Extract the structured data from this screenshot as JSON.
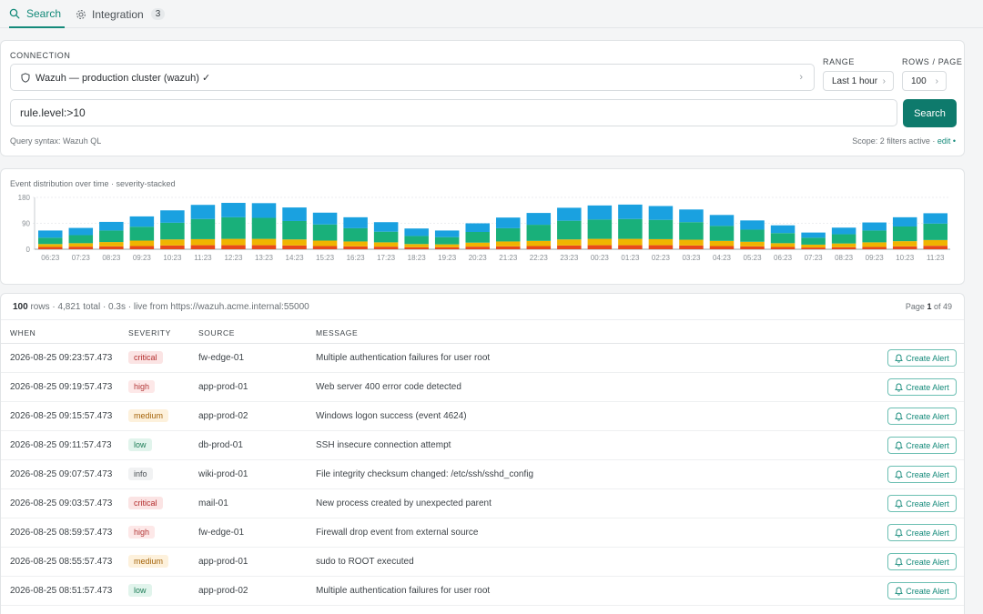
{
  "tabs": [
    {
      "label": "Search",
      "icon": "search-icon"
    },
    {
      "label": "Integration",
      "icon": "gear-icon",
      "badge": "3"
    }
  ],
  "connection": {
    "label": "CONNECTION",
    "value": "Wazuh — production cluster (wazuh) ✓",
    "icon": "shield-icon"
  },
  "range": {
    "label": "RANGE",
    "value": "Last 1 hour"
  },
  "rows_per_page": {
    "label": "ROWS / PAGE",
    "value": "100"
  },
  "query": {
    "value": "rule.level:>10",
    "button": "Search",
    "hint": "Query syntax: Wazuh QL"
  },
  "scope": {
    "text": "Scope: 2 filters active · ",
    "edit": "edit",
    "dot": " •"
  },
  "chart_title": "Event distribution over time · severity-stacked",
  "chart_data": {
    "type": "bar",
    "stacked": true,
    "ylim": [
      0,
      180
    ],
    "yticks": [
      "180",
      "90",
      "0"
    ],
    "categories": [
      "06:23",
      "07:23",
      "08:23",
      "09:23",
      "10:23",
      "11:23",
      "12:23",
      "13:23",
      "14:23",
      "15:23",
      "16:23",
      "17:23",
      "18:23",
      "19:23",
      "20:23",
      "21:23",
      "22:23",
      "23:23",
      "00:23",
      "01:23",
      "02:23",
      "03:23",
      "04:23",
      "05:23",
      "06:23",
      "07:23",
      "08:23",
      "09:23",
      "10:23",
      "11:23"
    ],
    "series": [
      {
        "color": "#e8491d",
        "values": [
          8,
          9,
          10,
          11,
          13,
          14,
          14,
          14,
          13,
          11,
          10,
          9,
          7,
          7,
          9,
          10,
          11,
          13,
          14,
          14,
          14,
          13,
          11,
          10,
          8,
          6,
          7,
          8,
          10,
          12
        ]
      },
      {
        "color": "#f0b400",
        "values": [
          10,
          12,
          15,
          19,
          21,
          21,
          22,
          22,
          21,
          19,
          17,
          15,
          11,
          10,
          14,
          17,
          18,
          21,
          22,
          22,
          21,
          20,
          18,
          16,
          13,
          10,
          13,
          16,
          18,
          20
        ]
      },
      {
        "color": "#19b07a",
        "values": [
          22,
          28,
          40,
          48,
          58,
          70,
          75,
          73,
          64,
          56,
          46,
          37,
          28,
          25,
          37,
          46,
          56,
          65,
          67,
          69,
          67,
          61,
          52,
          42,
          35,
          24,
          32,
          41,
          51,
          57
        ]
      },
      {
        "color": "#1aa1e0",
        "values": [
          25,
          25,
          30,
          36,
          43,
          49,
          50,
          51,
          47,
          41,
          38,
          33,
          26,
          23,
          30,
          37,
          41,
          45,
          49,
          50,
          48,
          44,
          38,
          32,
          27,
          18,
          23,
          28,
          32,
          36
        ]
      }
    ]
  },
  "table": {
    "row_count": "100",
    "summary_rest": " rows · 4,821 total · 0.3s · live from https://wazuh.acme.internal:55000",
    "page_prefix": "Page ",
    "page_current": "1",
    "page_suffix": " of 49",
    "columns": [
      "WHEN",
      "SEVERITY",
      "SOURCE",
      "MESSAGE"
    ],
    "alert_label": "Create Alert",
    "rows": [
      {
        "when": "2026-08-25 09:23:57.473",
        "severity": "critical",
        "source": "fw-edge-01",
        "message": "Multiple authentication failures for user root"
      },
      {
        "when": "2026-08-25 09:19:57.473",
        "severity": "high",
        "source": "app-prod-01",
        "message": "Web server 400 error code detected"
      },
      {
        "when": "2026-08-25 09:15:57.473",
        "severity": "medium",
        "source": "app-prod-02",
        "message": "Windows logon success (event 4624)"
      },
      {
        "when": "2026-08-25 09:11:57.473",
        "severity": "low",
        "source": "db-prod-01",
        "message": "SSH insecure connection attempt"
      },
      {
        "when": "2026-08-25 09:07:57.473",
        "severity": "info",
        "source": "wiki-prod-01",
        "message": "File integrity checksum changed: /etc/ssh/sshd_config"
      },
      {
        "when": "2026-08-25 09:03:57.473",
        "severity": "critical",
        "source": "mail-01",
        "message": "New process created by unexpected parent"
      },
      {
        "when": "2026-08-25 08:59:57.473",
        "severity": "high",
        "source": "fw-edge-01",
        "message": "Firewall drop event from external source"
      },
      {
        "when": "2026-08-25 08:55:57.473",
        "severity": "medium",
        "source": "app-prod-01",
        "message": "sudo to ROOT executed"
      },
      {
        "when": "2026-08-25 08:51:57.473",
        "severity": "low",
        "source": "app-prod-02",
        "message": "Multiple authentication failures for user root"
      }
    ]
  }
}
